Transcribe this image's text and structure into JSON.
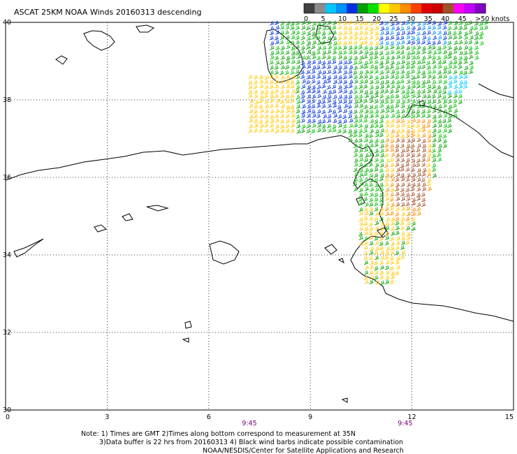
{
  "title": "ASCAT 25KM NOAA Winds 20160313 descending",
  "colorbar": {
    "labels": [
      "0",
      "5",
      "10",
      "15",
      "20",
      "25",
      "30",
      "35",
      "40",
      "45",
      ">50 knots"
    ],
    "colors": [
      "#404040",
      "#8c8c8c",
      "#00c8ff",
      "#0090ff",
      "#0030e0",
      "#00a000",
      "#00e000",
      "#ffff00",
      "#ffc800",
      "#ff8c00",
      "#ff4000",
      "#e00000",
      "#c80000",
      "#a05028",
      "#ff00ff",
      "#c000ff",
      "#8000c0"
    ]
  },
  "axes": {
    "x_ticks": [
      "0",
      "3",
      "6",
      "9",
      "12",
      "15"
    ],
    "y_ticks": [
      "40",
      "38",
      "36",
      "34",
      "32",
      "30"
    ],
    "lon_range": [
      0,
      15
    ],
    "lat_range": [
      30,
      40
    ]
  },
  "time_labels": [
    {
      "text": "9:45",
      "lon": 7.2
    },
    {
      "text": "9:45",
      "lon": 11.8
    }
  ],
  "notes": {
    "line1": "Note: 1) Times are GMT 2)Times along bottom correspond to measurement at 35N",
    "line2": "3)Data buffer is 22 hrs from 20160313 4) Black wind barbs indicate possible contamination",
    "line3": "NOAA/NESDIS/Center for Satellite Applications and Research"
  },
  "wind_swaths": [
    {
      "name": "swath-west",
      "lon_min": 7.1,
      "lon_max": 10.3,
      "lat_min": 36.5,
      "lat_max": 39.8
    },
    {
      "name": "swath-east",
      "lon_min": 10.0,
      "lon_max": 14.0,
      "lat_min": 33.6,
      "lat_max": 40.0
    }
  ]
}
